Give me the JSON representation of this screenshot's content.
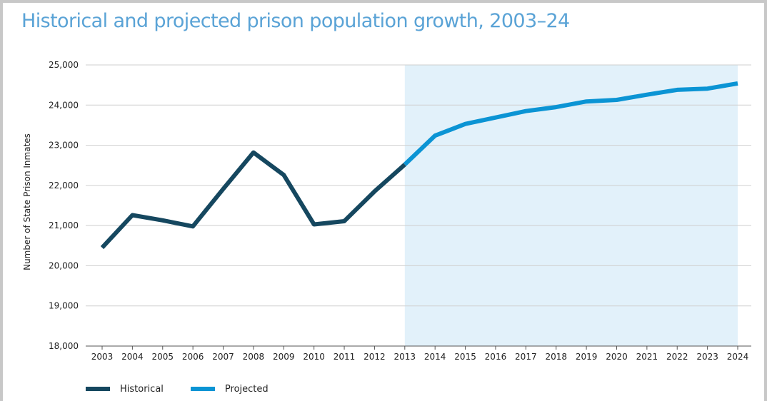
{
  "title": "Historical and projected prison population growth, 2003–24",
  "colors": {
    "historical": "#15475f",
    "projected": "#0b94d4",
    "projection_fill": "#e2f1fa",
    "title": "#5aa3d6",
    "grid": "#cfcfcf"
  },
  "chart_data": {
    "type": "line",
    "title": "Historical and projected prison population growth, 2003–24",
    "xlabel": "",
    "ylabel": "Number of State Prison Inmates",
    "ylim": [
      18000,
      25000
    ],
    "yticks": [
      18000,
      19000,
      20000,
      21000,
      22000,
      23000,
      24000,
      25000
    ],
    "ytick_labels": [
      "18,000",
      "19,000",
      "20,000",
      "21,000",
      "22,000",
      "23,000",
      "24,000",
      "25,000"
    ],
    "categories": [
      "2003",
      "2004",
      "2005",
      "2006",
      "2007",
      "2008",
      "2009",
      "2010",
      "2011",
      "2012",
      "2013",
      "2014",
      "2015",
      "2016",
      "2017",
      "2018",
      "2019",
      "2020",
      "2021",
      "2022",
      "2023",
      "2024"
    ],
    "grid": true,
    "legend_position": "bottom-left",
    "shaded_region": {
      "from": "2013",
      "to": "2024"
    },
    "series": [
      {
        "name": "Historical",
        "x": [
          "2003",
          "2004",
          "2005",
          "2006",
          "2007",
          "2008",
          "2009",
          "2010",
          "2011",
          "2012",
          "2013"
        ],
        "values": [
          20450,
          21260,
          21130,
          20980,
          21910,
          22820,
          22260,
          21030,
          21110,
          21850,
          22520
        ]
      },
      {
        "name": "Projected",
        "x": [
          "2013",
          "2014",
          "2015",
          "2016",
          "2017",
          "2018",
          "2019",
          "2020",
          "2021",
          "2022",
          "2023",
          "2024"
        ],
        "values": [
          22520,
          23240,
          23530,
          23690,
          23850,
          23950,
          24090,
          24130,
          24260,
          24380,
          24410,
          24540
        ]
      }
    ]
  },
  "legend": [
    {
      "label": "Historical",
      "color": "#15475f"
    },
    {
      "label": "Projected",
      "color": "#0b94d4"
    }
  ]
}
